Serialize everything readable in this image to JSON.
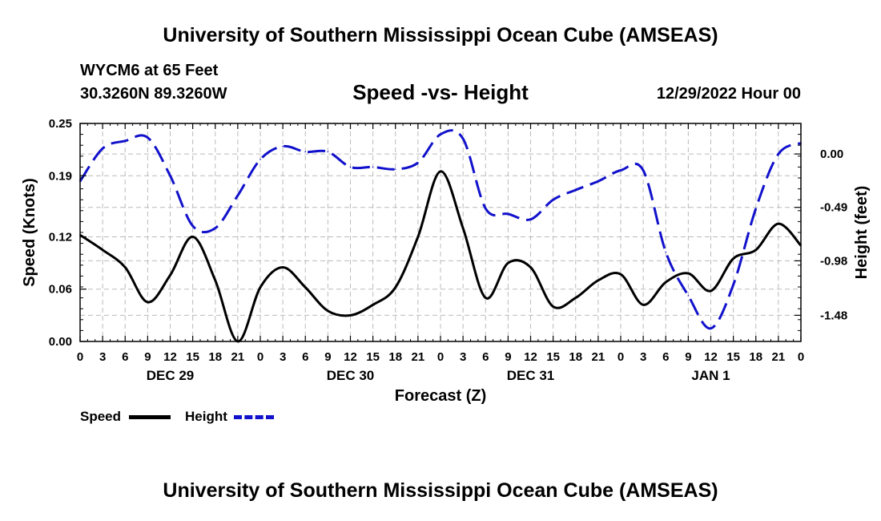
{
  "header": {
    "title": "University of Southern Mississippi Ocean Cube (AMSEAS)",
    "station": "WYCM6 at 65 Feet",
    "coords": "30.3260N  89.3260W",
    "subtitle": "Speed -vs- Height",
    "datetime": "12/29/2022 Hour 00"
  },
  "footer": {
    "title": "University of Southern Mississippi Ocean Cube (AMSEAS)"
  },
  "legend": {
    "speed_label": "Speed",
    "height_label": "Height"
  },
  "colors": {
    "speed": "#000000",
    "height": "#1111cc",
    "grid": "#bbbbbb"
  },
  "chart_data": {
    "type": "line",
    "title": "Speed -vs- Height",
    "xlabel": "Forecast (Z)",
    "ylabel": "Speed (Knots)",
    "ylabel_right": "Height (feet)",
    "xlim": [
      0,
      96
    ],
    "ylim": [
      0,
      0.25
    ],
    "ylim_right": [
      -1.72,
      0.28
    ],
    "x_ticks": [
      0,
      3,
      6,
      9,
      12,
      15,
      18,
      21,
      24,
      27,
      30,
      33,
      36,
      39,
      42,
      45,
      48,
      51,
      54,
      57,
      60,
      63,
      66,
      69,
      72,
      75,
      78,
      81,
      84,
      87,
      90,
      93,
      96
    ],
    "x_tick_labels": [
      "0",
      "3",
      "6",
      "9",
      "12",
      "15",
      "18",
      "21",
      "0",
      "3",
      "6",
      "9",
      "12",
      "15",
      "18",
      "21",
      "0",
      "3",
      "6",
      "9",
      "12",
      "15",
      "18",
      "21",
      "0",
      "3",
      "6",
      "9",
      "12",
      "15",
      "18",
      "21",
      "0"
    ],
    "day_labels": [
      {
        "x": 12,
        "label": "DEC 29"
      },
      {
        "x": 36,
        "label": "DEC 30"
      },
      {
        "x": 60,
        "label": "DEC 31"
      },
      {
        "x": 84,
        "label": "JAN 1"
      }
    ],
    "y_ticks": [
      0.0,
      0.06,
      0.12,
      0.19,
      0.25
    ],
    "y_tick_labels": [
      "0.00",
      "0.06",
      "0.12",
      "0.19",
      "0.25"
    ],
    "y_ticks_right": [
      0.0,
      -0.49,
      -0.98,
      -1.48
    ],
    "y_tick_labels_right": [
      "0.00",
      "-0.49",
      "-0.98",
      "-1.48"
    ],
    "grid": true,
    "legend_position": "bottom-left",
    "series": [
      {
        "name": "Speed",
        "axis": "left",
        "style": "solid",
        "x": [
          0,
          3,
          6,
          9,
          12,
          15,
          18,
          21,
          24,
          27,
          30,
          33,
          36,
          39,
          42,
          45,
          48,
          51,
          54,
          57,
          60,
          63,
          66,
          69,
          72,
          75,
          78,
          81,
          84,
          87,
          90,
          93,
          96
        ],
        "values": [
          0.122,
          0.105,
          0.085,
          0.045,
          0.076,
          0.12,
          0.07,
          0.0,
          0.062,
          0.085,
          0.062,
          0.035,
          0.03,
          0.042,
          0.062,
          0.12,
          0.195,
          0.13,
          0.05,
          0.09,
          0.085,
          0.04,
          0.05,
          0.07,
          0.077,
          0.042,
          0.068,
          0.078,
          0.058,
          0.095,
          0.105,
          0.135,
          0.11
        ]
      },
      {
        "name": "Height",
        "axis": "right",
        "style": "dashed",
        "x": [
          0,
          3,
          6,
          9,
          12,
          15,
          18,
          21,
          24,
          27,
          30,
          33,
          36,
          39,
          42,
          45,
          48,
          51,
          54,
          57,
          60,
          63,
          66,
          69,
          72,
          75,
          78,
          81,
          84,
          87,
          90,
          93,
          96
        ],
        "values": [
          -0.25,
          0.05,
          0.12,
          0.15,
          -0.2,
          -0.66,
          -0.68,
          -0.38,
          -0.05,
          0.07,
          0.02,
          0.02,
          -0.12,
          -0.12,
          -0.14,
          -0.08,
          0.18,
          0.14,
          -0.5,
          -0.55,
          -0.6,
          -0.42,
          -0.33,
          -0.25,
          -0.15,
          -0.15,
          -0.9,
          -1.3,
          -1.6,
          -1.2,
          -0.5,
          0.0,
          0.1
        ]
      }
    ]
  }
}
